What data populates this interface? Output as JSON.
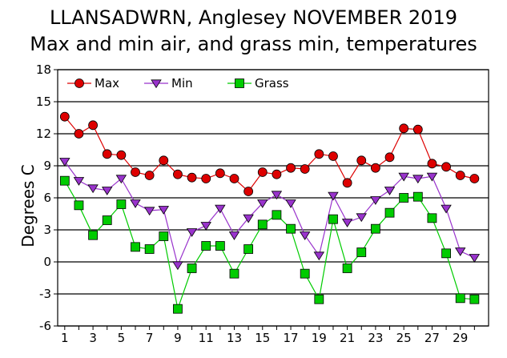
{
  "chart_data": {
    "type": "line",
    "title": "LLANSADWRN, Anglesey NOVEMBER 2019",
    "subtitle": "Max and min air, and grass min, temperatures",
    "ylabel": "Degrees C",
    "xlabel": "",
    "ylim": [
      -6,
      18
    ],
    "yticks": [
      -6,
      -3,
      0,
      3,
      6,
      9,
      12,
      15,
      18
    ],
    "xlim": [
      0.5,
      31
    ],
    "xticks": [
      1,
      3,
      5,
      7,
      9,
      11,
      13,
      15,
      17,
      19,
      21,
      23,
      25,
      27,
      29
    ],
    "grid": "horizontal",
    "legend": "top",
    "x": [
      1,
      2,
      3,
      4,
      5,
      6,
      7,
      8,
      9,
      10,
      11,
      12,
      13,
      14,
      15,
      16,
      17,
      18,
      19,
      20,
      21,
      22,
      23,
      24,
      25,
      26,
      27,
      28,
      29,
      30
    ],
    "series": [
      {
        "name": "Max",
        "color": "#dd0000",
        "marker": "circle",
        "values": [
          13.6,
          12.0,
          12.8,
          10.1,
          10.0,
          8.4,
          8.1,
          9.5,
          8.2,
          7.9,
          7.8,
          8.3,
          7.8,
          6.6,
          8.4,
          8.2,
          8.8,
          8.7,
          10.1,
          9.9,
          7.4,
          9.5,
          8.8,
          9.8,
          12.5,
          12.4,
          9.2,
          8.9,
          8.1,
          7.8
        ]
      },
      {
        "name": "Min",
        "color": "#9933cc",
        "marker": "triangle-down",
        "values": [
          9.4,
          7.6,
          6.9,
          6.7,
          7.8,
          5.5,
          4.8,
          4.9,
          -0.3,
          2.8,
          3.4,
          5.0,
          2.5,
          4.1,
          5.5,
          6.3,
          5.5,
          2.5,
          0.6,
          6.2,
          3.7,
          4.2,
          5.8,
          6.7,
          8.0,
          7.8,
          8.0,
          5.0,
          1.0,
          0.4
        ]
      },
      {
        "name": "Grass",
        "color": "#00cc00",
        "marker": "square",
        "values": [
          7.6,
          5.3,
          2.5,
          3.9,
          5.4,
          1.4,
          1.2,
          2.4,
          -4.4,
          -0.6,
          1.5,
          1.5,
          -1.1,
          1.2,
          3.5,
          4.4,
          3.1,
          -1.1,
          -3.5,
          4.0,
          -0.6,
          0.9,
          3.1,
          4.6,
          6.0,
          6.1,
          4.1,
          0.8,
          -3.4,
          -3.5
        ]
      }
    ]
  }
}
